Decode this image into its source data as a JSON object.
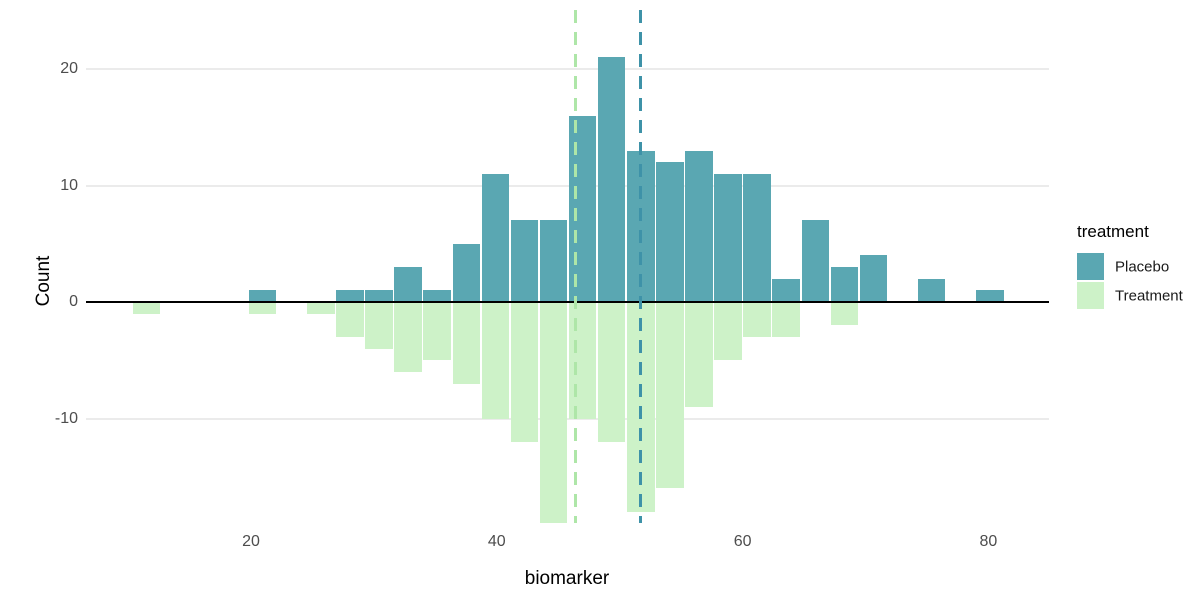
{
  "chart_data": {
    "type": "bar",
    "subtype": "mirrored-histogram",
    "title": "",
    "xlabel": "biomarker",
    "ylabel": "Count",
    "x_ticks": [
      20,
      40,
      60,
      80
    ],
    "y_ticks": [
      20,
      10,
      0,
      -10
    ],
    "bin_start": 10.3,
    "bin_width": 2.3667,
    "n_bins": 30,
    "grid": "horizontal-major-only",
    "legend_position": "right",
    "legend": {
      "title": "treatment"
    },
    "series": [
      {
        "name": "Placebo",
        "direction": "up",
        "color": "#5aa7b2",
        "mean": 51.7,
        "mean_line_color": "#3e92a8",
        "counts": [
          0,
          0,
          0,
          0,
          1,
          0,
          0,
          1,
          1,
          3,
          1,
          5,
          11,
          7,
          7,
          16,
          21,
          13,
          12,
          13,
          11,
          11,
          2,
          7,
          3,
          4,
          0,
          2,
          0,
          1
        ]
      },
      {
        "name": "Treatment",
        "direction": "down",
        "color": "#cdf2c8",
        "mean": 46.4,
        "mean_line_color": "#aee6a8",
        "counts": [
          1,
          0,
          0,
          0,
          1,
          0,
          1,
          3,
          4,
          6,
          5,
          7,
          10,
          12,
          19,
          10,
          12,
          18,
          16,
          9,
          5,
          3,
          3,
          0,
          2,
          0,
          0,
          0,
          0,
          0
        ]
      }
    ],
    "colors": {
      "grid": "#ebebeb",
      "zero_line": "#000000",
      "axis_text": "#4d4d4d",
      "background": "#ffffff"
    }
  }
}
